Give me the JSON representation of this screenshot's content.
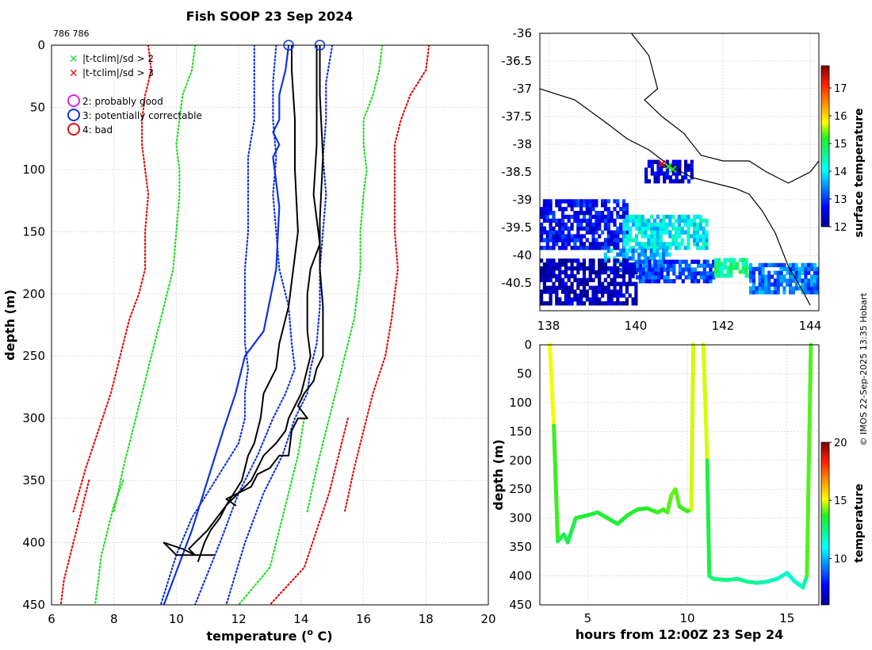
{
  "figure_title": "Fish SOOP 23 Sep 2024",
  "id_label": "786 786",
  "credit": "© IMOS 22-Sep-2025 13:35 Hobart",
  "legend": {
    "flags": [
      "|t-tclim|/sd > 2",
      "|t-tclim|/sd > 3"
    ],
    "qc": [
      "2: probably good",
      "3: potentially correctable",
      "4: bad"
    ]
  },
  "colors": {
    "green": "#22dd22",
    "red": "#dd1111",
    "blue": "#1133dd",
    "magenta": "#dd22dd",
    "black": "#000000",
    "grid": "#d8d8d8"
  },
  "chart_data": [
    {
      "type": "line",
      "name": "temperature-profile",
      "xlabel": "temperature (o C)",
      "xlabel_main": "temperature (",
      "xlabel_sup": "o",
      "xlabel_end": " C)",
      "ylabel": "depth (m)",
      "xlim": [
        6,
        20
      ],
      "ylim": [
        450,
        0
      ],
      "xticks": [
        6,
        8,
        10,
        12,
        14,
        16,
        18,
        20
      ],
      "yticks": [
        0,
        50,
        100,
        150,
        200,
        250,
        300,
        350,
        400,
        450
      ],
      "series": [
        {
          "name": "clim -3sd",
          "style": "red-dotted",
          "x": [
            9.1,
            9.2,
            9.0,
            8.9,
            8.9,
            9.0,
            9.1,
            9.0,
            9.0,
            8.8,
            8.5,
            8.2,
            7.9,
            7.5,
            7.1,
            6.7
          ],
          "y": [
            0,
            20,
            40,
            60,
            80,
            100,
            120,
            150,
            180,
            200,
            220,
            250,
            280,
            310,
            340,
            375
          ]
        },
        {
          "name": "clim -2sd",
          "style": "green-dotted",
          "x": [
            10.6,
            10.5,
            10.2,
            10.1,
            10.0,
            10.1,
            10.1,
            10.0,
            9.9,
            9.7,
            9.5,
            9.2,
            8.9,
            8.6,
            8.3,
            8.0
          ],
          "y": [
            0,
            20,
            40,
            60,
            80,
            100,
            120,
            150,
            180,
            200,
            220,
            250,
            280,
            310,
            340,
            375
          ]
        },
        {
          "name": "clim +2sd",
          "style": "green-dotted",
          "x": [
            16.6,
            16.5,
            16.3,
            16.0,
            16.0,
            16.1,
            16.0,
            15.9,
            15.9,
            15.8,
            15.7,
            15.4,
            15.1,
            14.8,
            14.5,
            14.2
          ],
          "y": [
            0,
            20,
            40,
            60,
            80,
            100,
            120,
            150,
            180,
            200,
            220,
            250,
            280,
            310,
            340,
            375
          ]
        },
        {
          "name": "clim +3sd",
          "style": "red-dotted",
          "x": [
            18.1,
            18.0,
            17.5,
            17.2,
            17.0,
            17.0,
            17.0,
            17.0,
            17.1,
            17.0,
            16.9,
            16.7,
            16.3,
            16.0,
            15.7,
            15.4
          ],
          "y": [
            0,
            20,
            40,
            60,
            80,
            100,
            120,
            150,
            180,
            200,
            220,
            250,
            280,
            310,
            340,
            375
          ]
        },
        {
          "name": "clim -3sd deep",
          "style": "red-dotted",
          "x": [
            7.2,
            7.0,
            6.8,
            6.6,
            6.4,
            6.3
          ],
          "y": [
            350,
            370,
            390,
            410,
            430,
            450
          ]
        },
        {
          "name": "clim -2sd deep",
          "style": "green-dotted",
          "x": [
            8.3,
            8.0,
            7.8,
            7.6,
            7.5,
            7.4
          ],
          "y": [
            350,
            370,
            390,
            410,
            430,
            450
          ]
        },
        {
          "name": "clim +2sd deep",
          "style": "green-dotted",
          "x": [
            14.1,
            13.9,
            13.6,
            13.3,
            13.0,
            12.0
          ],
          "y": [
            300,
            330,
            360,
            390,
            420,
            450
          ]
        },
        {
          "name": "clim +3sd deep",
          "style": "red-dotted",
          "x": [
            15.5,
            15.2,
            14.9,
            14.5,
            14.1,
            13.0
          ],
          "y": [
            300,
            330,
            360,
            390,
            420,
            450
          ]
        },
        {
          "name": "mean -sd",
          "style": "blue-dotted",
          "x": [
            12.5,
            12.5,
            12.5,
            12.3,
            12.3,
            12.3,
            12.2,
            12.2,
            12.2,
            12.3,
            12.2,
            12.2,
            12.0,
            11.5,
            11.0,
            10.5,
            10.0,
            9.5
          ],
          "y": [
            0,
            30,
            60,
            90,
            120,
            150,
            180,
            210,
            240,
            260,
            280,
            300,
            320,
            340,
            360,
            380,
            410,
            450
          ]
        },
        {
          "name": "mean",
          "style": "blue-dotted",
          "x": [
            13.2,
            13.1,
            13.1,
            13.2,
            13.1,
            13.2,
            13.3,
            13.6,
            13.7,
            13.8,
            13.5,
            13.1,
            12.6,
            12.0,
            11.4,
            10.6
          ],
          "y": [
            0,
            30,
            60,
            90,
            120,
            150,
            180,
            210,
            240,
            260,
            280,
            300,
            330,
            360,
            400,
            450
          ]
        },
        {
          "name": "mean +sd",
          "style": "blue-dotted",
          "x": [
            15.0,
            14.8,
            14.8,
            14.7,
            14.8,
            14.7,
            14.6,
            14.6,
            14.5,
            14.3,
            14.2,
            13.8,
            13.4,
            12.8,
            12.2,
            11.6
          ],
          "y": [
            0,
            30,
            60,
            90,
            120,
            150,
            180,
            210,
            240,
            260,
            280,
            300,
            330,
            360,
            400,
            450
          ]
        },
        {
          "name": "profile-3",
          "style": "blue-solid",
          "x": [
            13.6,
            13.5,
            13.3,
            13.3,
            13.1,
            13.3,
            13.1,
            13.2,
            13.3,
            13.2,
            12.8,
            12.2,
            11.9,
            11.5,
            11.0,
            10.5,
            9.6
          ],
          "y": [
            0,
            20,
            40,
            60,
            70,
            80,
            90,
            110,
            130,
            180,
            230,
            250,
            280,
            310,
            350,
            390,
            450
          ]
        },
        {
          "name": "profile-1",
          "style": "black-solid",
          "x": [
            13.7,
            13.7,
            13.8,
            13.8,
            13.9,
            13.7,
            13.6,
            13.3,
            13.2,
            12.8,
            12.7,
            12.5,
            12.3,
            12.1,
            11.6,
            11.3,
            11.0,
            10.6,
            10.4,
            10.6,
            10.2,
            9.6,
            10.0,
            11.0,
            11.2
          ],
          "y": [
            0,
            20,
            60,
            100,
            150,
            190,
            210,
            240,
            260,
            280,
            300,
            320,
            330,
            350,
            370,
            380,
            390,
            400,
            405,
            410,
            405,
            400,
            410,
            410,
            410
          ]
        },
        {
          "name": "profile-2",
          "style": "black-solid",
          "x": [
            14.5,
            14.5,
            14.5,
            14.4,
            14.6,
            14.3,
            14.2,
            14.2,
            14.3,
            14.1,
            14.0,
            13.8,
            13.6,
            13.5,
            13.2,
            12.8,
            12.6,
            12.4,
            12.0,
            11.6,
            11.4,
            11.1,
            10.9,
            10.7
          ],
          "y": [
            0,
            40,
            80,
            120,
            160,
            180,
            200,
            230,
            250,
            270,
            280,
            290,
            300,
            310,
            320,
            330,
            340,
            350,
            360,
            370,
            380,
            390,
            400,
            415
          ]
        },
        {
          "name": "profile-4",
          "style": "black-solid",
          "x": [
            14.6,
            14.6,
            14.7,
            14.6,
            14.6,
            14.7,
            14.7,
            14.5,
            14.4,
            14.1,
            13.9,
            14.2,
            13.9,
            13.7,
            13.6,
            13.3,
            13.0,
            12.6,
            12.4,
            12.0,
            11.6,
            11.9
          ],
          "y": [
            0,
            40,
            90,
            140,
            180,
            210,
            250,
            260,
            270,
            280,
            290,
            300,
            300,
            310,
            330,
            330,
            340,
            345,
            355,
            360,
            365,
            370
          ]
        }
      ],
      "flag_markers": [
        {
          "qc": "3",
          "x": 13.6,
          "y": 0
        },
        {
          "qc": "3",
          "x": 14.6,
          "y": 0
        }
      ]
    },
    {
      "type": "heatmap",
      "name": "sst-map",
      "xlim": [
        137.8,
        144.2
      ],
      "ylim": [
        -41,
        -36
      ],
      "xticks": [
        138,
        140,
        142,
        144
      ],
      "yticks": [
        -36,
        -36.5,
        -37,
        -37.5,
        -38,
        -38.5,
        -39,
        -39.5,
        -40,
        -40.5
      ],
      "ytick_labels": [
        "-36",
        "-36.5",
        "-37",
        "-37.5",
        "-38",
        "-38.5",
        "-39",
        "-39.5",
        "-40",
        "-40.5"
      ],
      "colorbar_label": "surface temperature",
      "colorbar_range": [
        12,
        17.8
      ],
      "colorbar_ticks": [
        12,
        13,
        14,
        15,
        16,
        17
      ],
      "coast": [
        [
          137.8,
          -37.0
        ],
        [
          138.6,
          -37.2
        ],
        [
          139.3,
          -37.6
        ],
        [
          139.8,
          -37.9
        ],
        [
          140.3,
          -38.1
        ],
        [
          140.8,
          -38.4
        ],
        [
          141.3,
          -38.6
        ],
        [
          141.8,
          -38.7
        ],
        [
          142.3,
          -38.8
        ],
        [
          142.6,
          -38.9
        ],
        [
          142.9,
          -39.2
        ],
        [
          143.2,
          -39.6
        ],
        [
          143.4,
          -40.0
        ],
        [
          143.5,
          -40.2
        ],
        [
          143.8,
          -40.6
        ],
        [
          144.0,
          -40.9
        ]
      ],
      "coast2": [
        [
          139.9,
          -36.0
        ],
        [
          140.3,
          -36.4
        ],
        [
          140.5,
          -37.0
        ],
        [
          140.2,
          -37.2
        ],
        [
          140.6,
          -37.5
        ],
        [
          141.1,
          -37.8
        ],
        [
          141.5,
          -38.2
        ],
        [
          142.0,
          -38.3
        ],
        [
          142.6,
          -38.3
        ],
        [
          143.0,
          -38.5
        ],
        [
          143.5,
          -38.7
        ],
        [
          144.0,
          -38.5
        ],
        [
          144.2,
          -38.3
        ]
      ],
      "sst_patches": [
        {
          "lon": [
            137.8,
            139.8
          ],
          "lat": [
            -39.9,
            -39.0
          ],
          "t": 12.7
        },
        {
          "lon": [
            139.7,
            141.6
          ],
          "lat": [
            -39.9,
            -39.3
          ],
          "t": 14.0
        },
        {
          "lon": [
            139.2,
            140.8
          ],
          "lat": [
            -40.3,
            -39.9
          ],
          "t": 13.6
        },
        {
          "lon": [
            137.8,
            140.0
          ],
          "lat": [
            -40.9,
            -40.1
          ],
          "t": 12.2
        },
        {
          "lon": [
            140.0,
            141.8
          ],
          "lat": [
            -40.5,
            -40.1
          ],
          "t": 13.0
        },
        {
          "lon": [
            141.8,
            142.6
          ],
          "lat": [
            -40.4,
            -40.1
          ],
          "t": 14.6
        },
        {
          "lon": [
            142.6,
            144.2
          ],
          "lat": [
            -40.7,
            -40.2
          ],
          "t": 13.3
        },
        {
          "lon": [
            140.2,
            141.3
          ],
          "lat": [
            -38.7,
            -38.3
          ],
          "t": 12.4
        }
      ],
      "track": [
        {
          "lon": 140.6,
          "lat": -38.35
        },
        {
          "lon": 140.75,
          "lat": -38.4
        },
        {
          "lon": 140.85,
          "lat": -38.45
        }
      ]
    },
    {
      "type": "line",
      "name": "depth-time",
      "xlabel": "hours from 12:00Z 23 Sep 24",
      "ylabel": "depth (m)",
      "xlim": [
        2.6,
        16.6
      ],
      "ylim": [
        450,
        0
      ],
      "xticks": [
        5,
        10,
        15
      ],
      "yticks": [
        0,
        50,
        100,
        150,
        200,
        250,
        300,
        350,
        400,
        450
      ],
      "colorbar_label": "temperature",
      "colorbar_range": [
        6,
        20
      ],
      "colorbar_ticks": [
        10,
        15,
        20
      ],
      "segments": [
        {
          "t": [
            3.1,
            3.3,
            3.5,
            3.8,
            4.0,
            4.4,
            5.0,
            5.5,
            6.0,
            6.5,
            7.0,
            7.5,
            8.0,
            8.5,
            8.8,
            9.0,
            9.2,
            9.4,
            9.6,
            10.0,
            10.2,
            10.3
          ],
          "d": [
            0,
            140,
            340,
            328,
            342,
            300,
            295,
            290,
            300,
            310,
            295,
            285,
            283,
            290,
            285,
            290,
            260,
            250,
            280,
            288,
            285,
            0
          ],
          "c": [
            15.5,
            14.5,
            13.2,
            13.1,
            13.0,
            13.4,
            13.5,
            13.4,
            13.5,
            13.4,
            13.5,
            13.6,
            13.7,
            13.8,
            13.9,
            13.9,
            14.1,
            14.2,
            13.9,
            13.8,
            13.8,
            15.8
          ]
        },
        {
          "t": [
            10.8,
            11.0,
            11.1,
            11.3,
            12.0,
            12.5,
            13.0,
            13.5,
            14.0,
            14.5,
            15.0,
            15.4,
            15.8,
            16.0,
            16.2
          ],
          "d": [
            0,
            200,
            400,
            405,
            407,
            405,
            410,
            412,
            410,
            405,
            395,
            410,
            420,
            400,
            0
          ],
          "c": [
            15.7,
            14.0,
            12.6,
            12.5,
            12.4,
            12.3,
            12.2,
            12.2,
            11.9,
            11.7,
            11.6,
            11.5,
            11.6,
            12.5,
            15.5
          ]
        }
      ]
    }
  ]
}
